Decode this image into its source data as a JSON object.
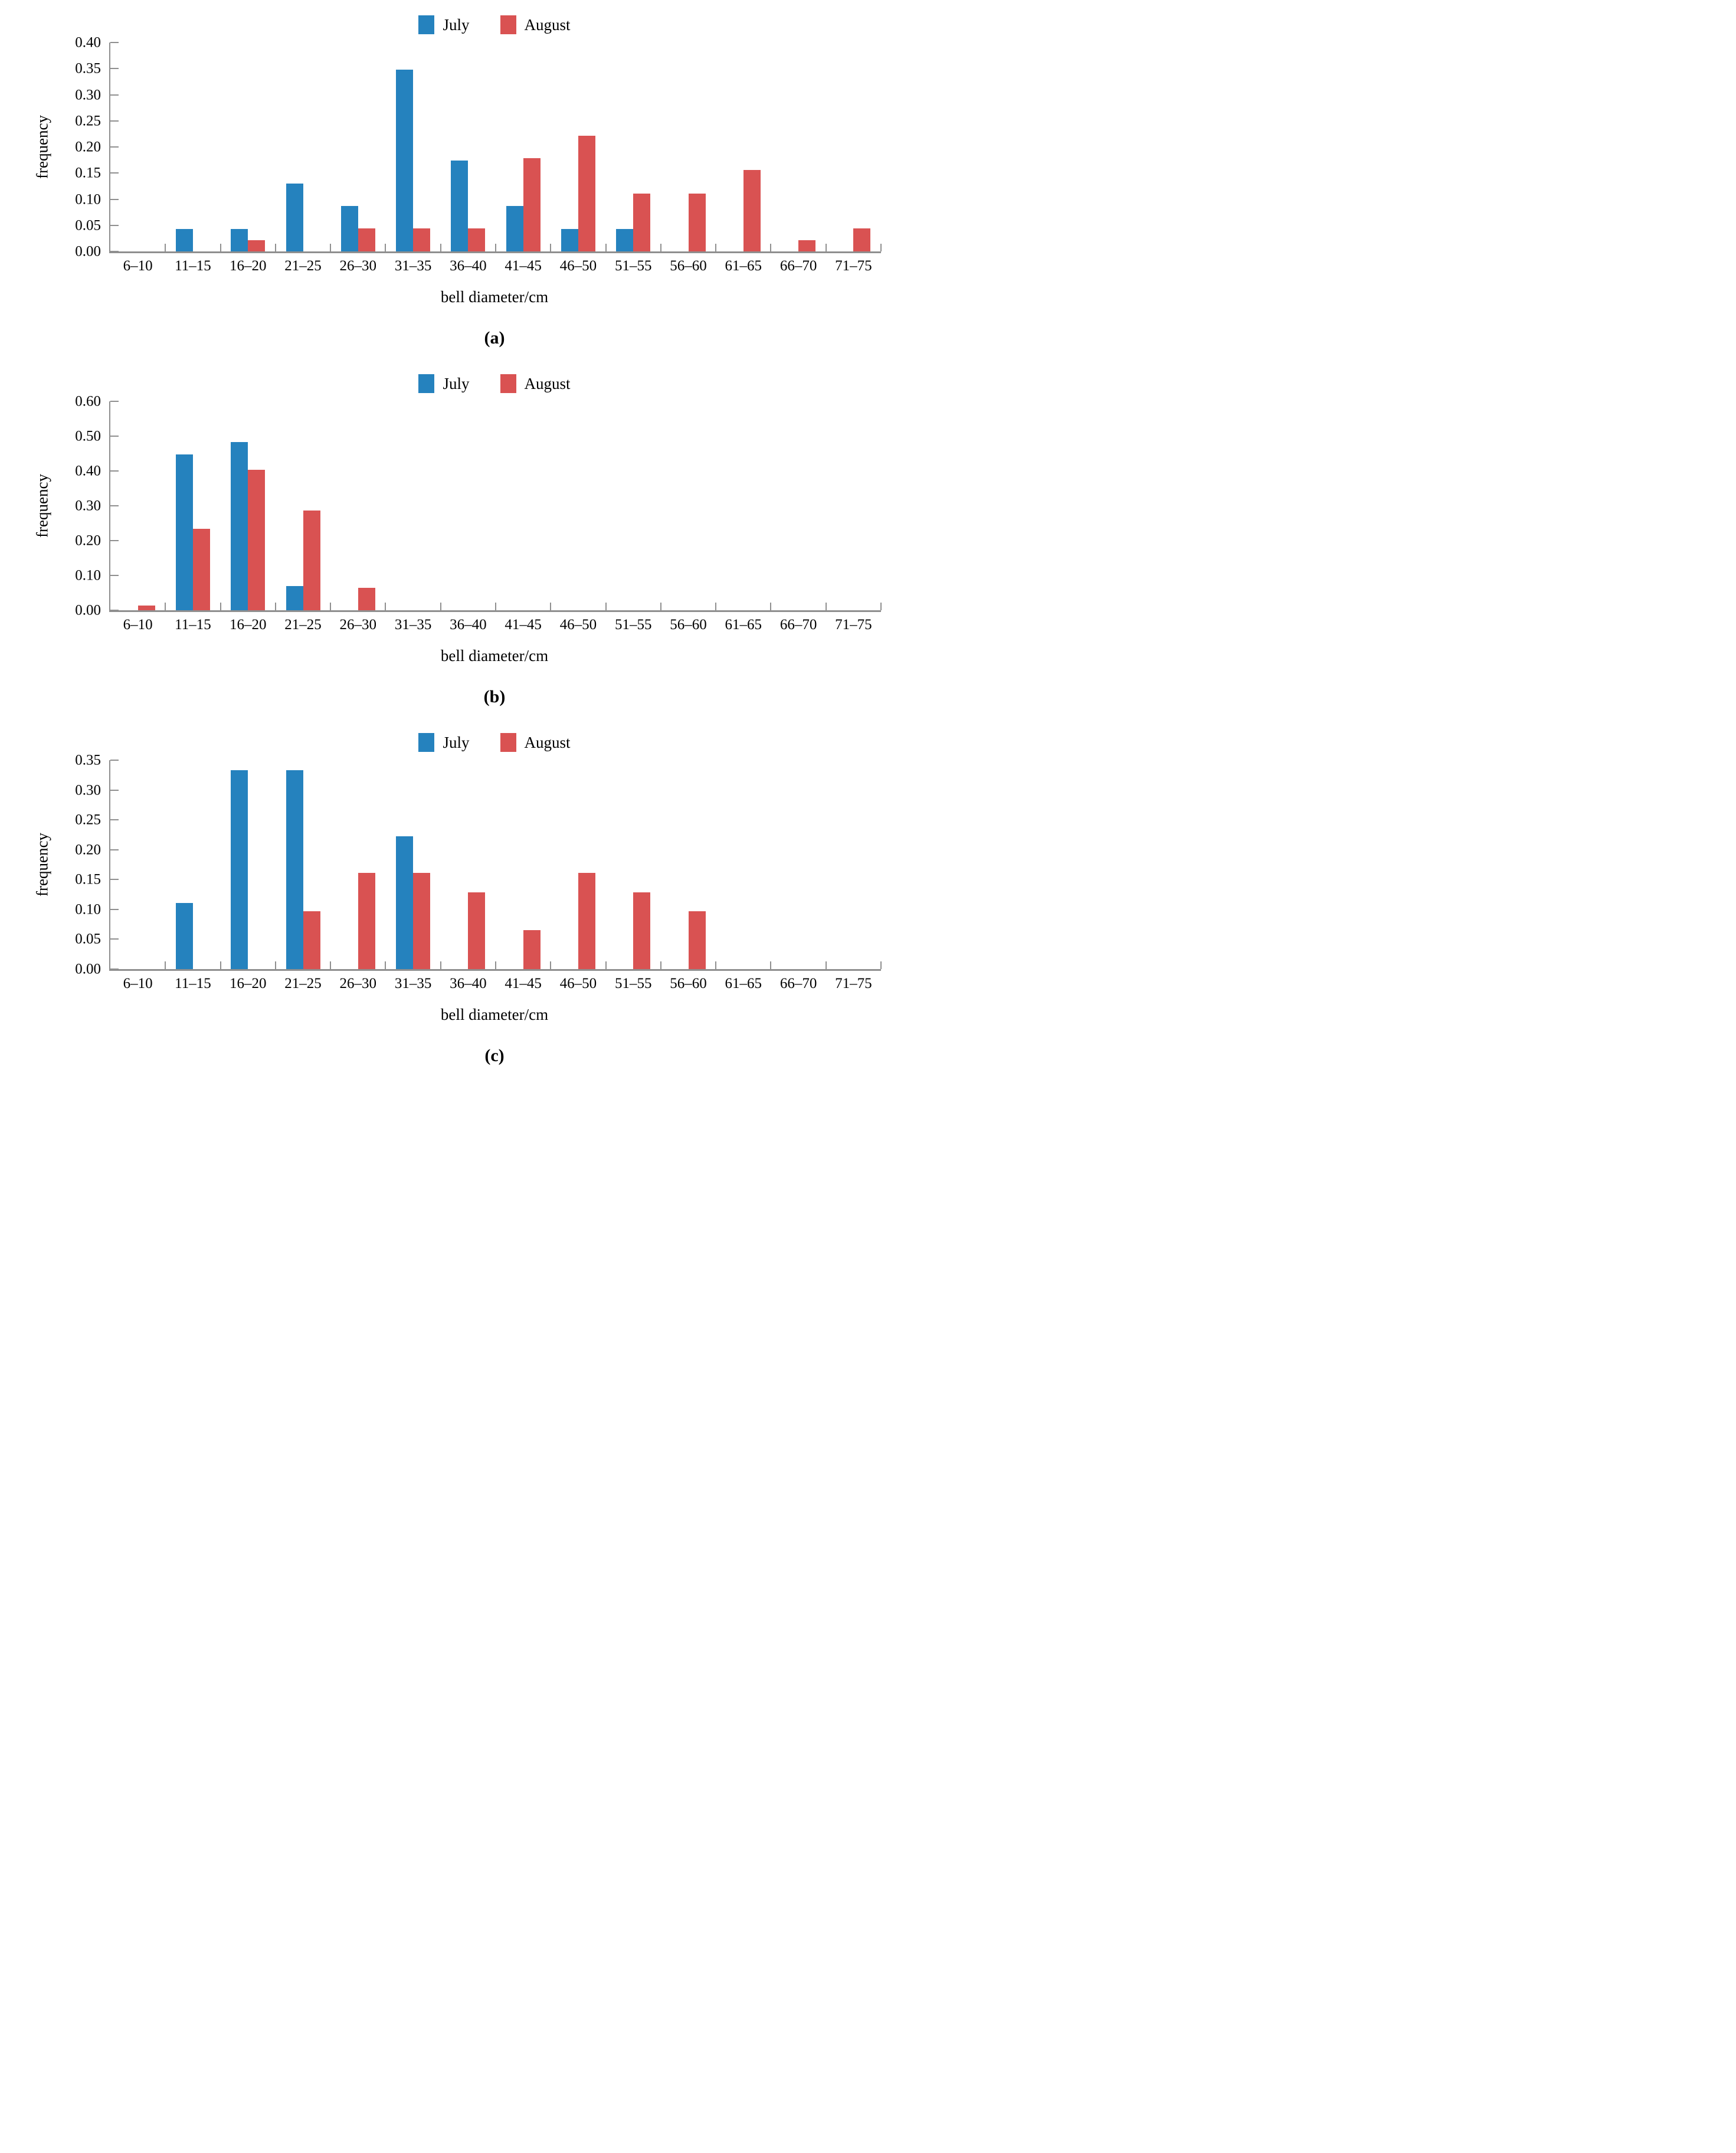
{
  "colors": {
    "july_bar": "#2582be",
    "august_bar": "#d95252",
    "axis": "#8f8f8f",
    "text": "#000000"
  },
  "chart_data": [
    {
      "type": "bar",
      "panel": "(a)",
      "xlabel": "bell diameter/cm",
      "ylabel": "frequency",
      "ylim": [
        0,
        0.4
      ],
      "ytick_step": 0.05,
      "yticks": [
        "0.00",
        "0.05",
        "0.10",
        "0.15",
        "0.20",
        "0.25",
        "0.30",
        "0.35",
        "0.40"
      ],
      "grid": false,
      "legend_position": "top-center",
      "categories": [
        "6–10",
        "11–15",
        "16–20",
        "21–25",
        "26–30",
        "31–35",
        "36–40",
        "41–45",
        "46–50",
        "51–55",
        "56–60",
        "61–65",
        "66–70",
        "71–75"
      ],
      "series": [
        {
          "name": "July",
          "color": "#2582be",
          "values": [
            0,
            0.043,
            0.043,
            0.13,
            0.087,
            0.348,
            0.174,
            0.087,
            0.043,
            0.043,
            0,
            0,
            0,
            0
          ]
        },
        {
          "name": "August",
          "color": "#d95252",
          "values": [
            0,
            0,
            0.022,
            0,
            0.044,
            0.044,
            0.044,
            0.178,
            0.222,
            0.111,
            0.111,
            0.156,
            0.022,
            0.044
          ]
        }
      ]
    },
    {
      "type": "bar",
      "panel": "(b)",
      "xlabel": "bell diameter/cm",
      "ylabel": "frequency",
      "ylim": [
        0,
        0.6
      ],
      "ytick_step": 0.1,
      "yticks": [
        "0.00",
        "0.10",
        "0.20",
        "0.30",
        "0.40",
        "0.50",
        "0.60"
      ],
      "grid": false,
      "legend_position": "top-center",
      "categories": [
        "6–10",
        "11–15",
        "16–20",
        "21–25",
        "26–30",
        "31–35",
        "36–40",
        "41–45",
        "46–50",
        "51–55",
        "56–60",
        "61–65",
        "66–70",
        "71–75"
      ],
      "series": [
        {
          "name": "July",
          "color": "#2582be",
          "values": [
            0,
            0.448,
            0.483,
            0.069,
            0,
            0,
            0,
            0,
            0,
            0,
            0,
            0,
            0,
            0
          ]
        },
        {
          "name": "August",
          "color": "#d95252",
          "values": [
            0.013,
            0.234,
            0.403,
            0.286,
            0.065,
            0,
            0,
            0,
            0,
            0,
            0,
            0,
            0,
            0
          ]
        }
      ]
    },
    {
      "type": "bar",
      "panel": "(c)",
      "xlabel": "bell diameter/cm",
      "ylabel": "frequency",
      "ylim": [
        0,
        0.35
      ],
      "ytick_step": 0.05,
      "yticks": [
        "0.00",
        "0.05",
        "0.10",
        "0.15",
        "0.20",
        "0.25",
        "0.30",
        "0.35"
      ],
      "grid": false,
      "legend_position": "top-center",
      "categories": [
        "6–10",
        "11–15",
        "16–20",
        "21–25",
        "26–30",
        "31–35",
        "36–40",
        "41–45",
        "46–50",
        "51–55",
        "56–60",
        "61–65",
        "66–70",
        "71–75"
      ],
      "series": [
        {
          "name": "July",
          "color": "#2582be",
          "values": [
            0,
            0.111,
            0.333,
            0.333,
            0,
            0.222,
            0,
            0,
            0,
            0,
            0,
            0,
            0,
            0
          ]
        },
        {
          "name": "August",
          "color": "#d95252",
          "values": [
            0,
            0,
            0,
            0.097,
            0.161,
            0.161,
            0.129,
            0.065,
            0.161,
            0.129,
            0.097,
            0,
            0,
            0
          ]
        }
      ]
    }
  ]
}
